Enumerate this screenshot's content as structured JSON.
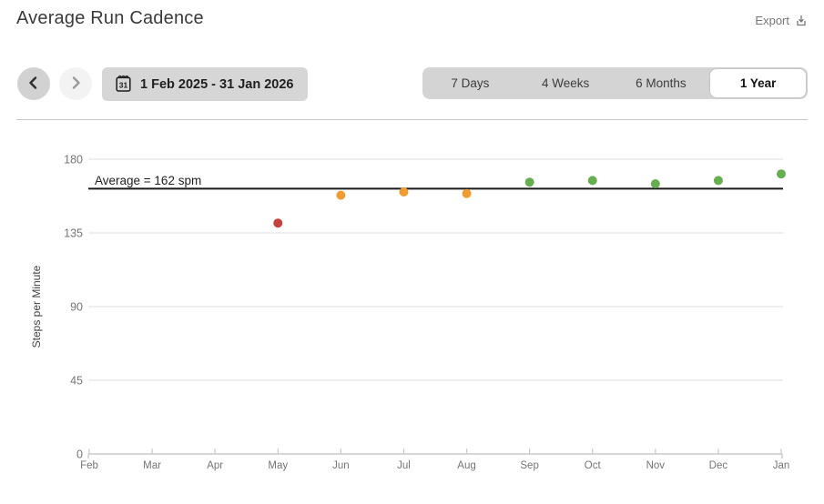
{
  "header": {
    "title": "Average Run Cadence",
    "export_label": "Export"
  },
  "toolbar": {
    "date_range": "1 Feb 2025 - 31 Jan 2026",
    "calendar_icon_day": "31",
    "tabs": [
      {
        "label": "7 Days",
        "selected": false
      },
      {
        "label": "4 Weeks",
        "selected": false
      },
      {
        "label": "6 Months",
        "selected": false
      },
      {
        "label": "1 Year",
        "selected": true
      }
    ]
  },
  "chart_data": {
    "type": "scatter",
    "title": "Average Run Cadence",
    "xlabel": "",
    "ylabel": "Steps per Minute",
    "ylim": [
      0,
      180
    ],
    "yticks": [
      0,
      45,
      90,
      135,
      180
    ],
    "grid": true,
    "categories": [
      "Feb",
      "Mar",
      "Apr",
      "May",
      "Jun",
      "Jul",
      "Aug",
      "Sep",
      "Oct",
      "Nov",
      "Dec",
      "Jan"
    ],
    "points": [
      {
        "month": "May",
        "value": 141,
        "color": "red"
      },
      {
        "month": "Jun",
        "value": 158,
        "color": "orange"
      },
      {
        "month": "Jul",
        "value": 160,
        "color": "orange"
      },
      {
        "month": "Aug",
        "value": 159,
        "color": "orange"
      },
      {
        "month": "Sep",
        "value": 166,
        "color": "green"
      },
      {
        "month": "Oct",
        "value": 167,
        "color": "green"
      },
      {
        "month": "Nov",
        "value": 165,
        "color": "green"
      },
      {
        "month": "Dec",
        "value": 167,
        "color": "green"
      },
      {
        "month": "Jan",
        "value": 171,
        "color": "green"
      }
    ],
    "average": {
      "value": 162,
      "unit": "spm",
      "label": "Average = 162 spm"
    },
    "colors": {
      "red": "#c5423f",
      "orange": "#ef9d33",
      "green": "#67ae51",
      "average_line": "#1a1a1a",
      "gridline": "#dedede",
      "axis": "#c9c9c9"
    }
  }
}
